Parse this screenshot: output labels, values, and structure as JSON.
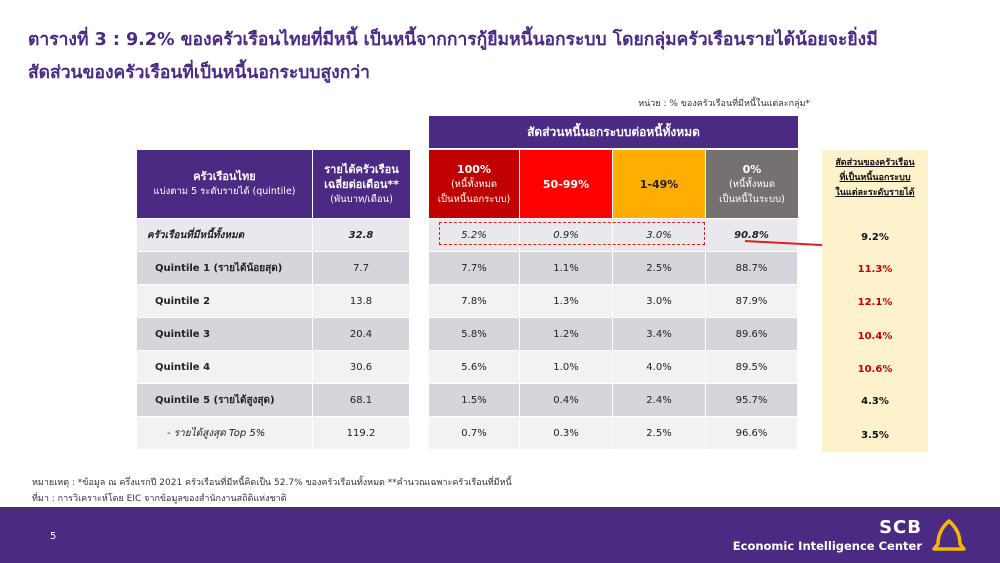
{
  "title": {
    "line1": "ตารางที่ 3 : 9.2% ของครัวเรือนไทยที่มีหนี้ เป็นหนี้จากการกู้ยืมหนี้นอกระบบ โดยกลุ่มครัวเรือนรายได้น้อยจะยิ่งมี",
    "line2": "สัดส่วนของครัวเรือนที่เป็นหนี้นอกระบบสูงกว่า"
  },
  "unit_note": "หน่วย : % ของครัวเรือนที่มีหนี้ในแต่ละกลุ่ม*",
  "header": {
    "group": {
      "line1": "ครัวเรือนไทย",
      "line2": "แบ่งตาม 5 ระดับรายได้ (quintile)"
    },
    "income": {
      "line1": "รายได้ครัวเรือน",
      "line2": "เฉลี่ยต่อเดือน**",
      "line3": "(พันบาท/เดือน)"
    },
    "super": "สัดส่วนหนี้นอกระบบต่อหนี้ทั้งหมด",
    "c100": {
      "line1": "100%",
      "line2": "(หนี้ทั้งหมด",
      "line3": "เป็นหนี้นอกระบบ)"
    },
    "c5099": "50-99%",
    "c149": "1-49%",
    "c0": {
      "line1": "0%",
      "line2": "(หนี้ทั้งหมด",
      "line3": "เป็นหนี้ในระบบ)"
    }
  },
  "colors": {
    "purple": "#4b2a83",
    "red_dark": "#c00000",
    "red": "#ff0000",
    "orange": "#ffae00",
    "grey": "#767171",
    "side_bg": "#fdf2cc",
    "highlight_red": "#c00000"
  },
  "rows": [
    {
      "label": "ครัวเรือนที่มีหนี้ทั้งหมด",
      "income": "32.8",
      "p100": "5.2%",
      "p5099": "0.9%",
      "p149": "3.0%",
      "p0": "90.8%"
    },
    {
      "label": "Quintile 1 (รายได้น้อยสุด)",
      "income": "7.7",
      "p100": "7.7%",
      "p5099": "1.1%",
      "p149": "2.5%",
      "p0": "88.7%"
    },
    {
      "label": "Quintile 2",
      "income": "13.8",
      "p100": "7.8%",
      "p5099": "1.3%",
      "p149": "3.0%",
      "p0": "87.9%"
    },
    {
      "label": "Quintile 3",
      "income": "20.4",
      "p100": "5.8%",
      "p5099": "1.2%",
      "p149": "3.4%",
      "p0": "89.6%"
    },
    {
      "label": "Quintile 4",
      "income": "30.6",
      "p100": "5.6%",
      "p5099": "1.0%",
      "p149": "4.0%",
      "p0": "89.5%"
    },
    {
      "label": "Quintile 5 (รายได้สูงสุด)",
      "income": "68.1",
      "p100": "1.5%",
      "p5099": "0.4%",
      "p149": "2.4%",
      "p0": "95.7%"
    },
    {
      "label": "- รายได้สูงสุด Top 5%",
      "income": "119.2",
      "p100": "0.7%",
      "p5099": "0.3%",
      "p149": "2.5%",
      "p0": "96.6%"
    }
  ],
  "side": {
    "line1": "สัดส่วนของครัวเรือน",
    "line2": "ที่เป็นหนี้นอกระบบ",
    "line3": "ในแต่ละระดับรายได้",
    "values": [
      "9.2%",
      "11.3%",
      "12.1%",
      "10.4%",
      "10.6%",
      "4.3%",
      "3.5%"
    ]
  },
  "notes": {
    "remark": "หมายเหตุ : *ข้อมูล ณ ครึ่งแรกปี 2021 ครัวเรือนที่มีหนี้คิดเป็น 52.7% ของครัวเรือนทั้งหมด **คำนวณเฉพาะครัวเรือนที่มีหนี้",
    "source": "ที่มา : การวิเคราะห์โดย EIC จากข้อมูลของสำนักงานสถิติแห่งชาติ"
  },
  "footer": {
    "page": "5",
    "brand": "SCB",
    "subbrand": "Economic Intelligence Center",
    "logo_icon": "scb-bell-logo"
  }
}
